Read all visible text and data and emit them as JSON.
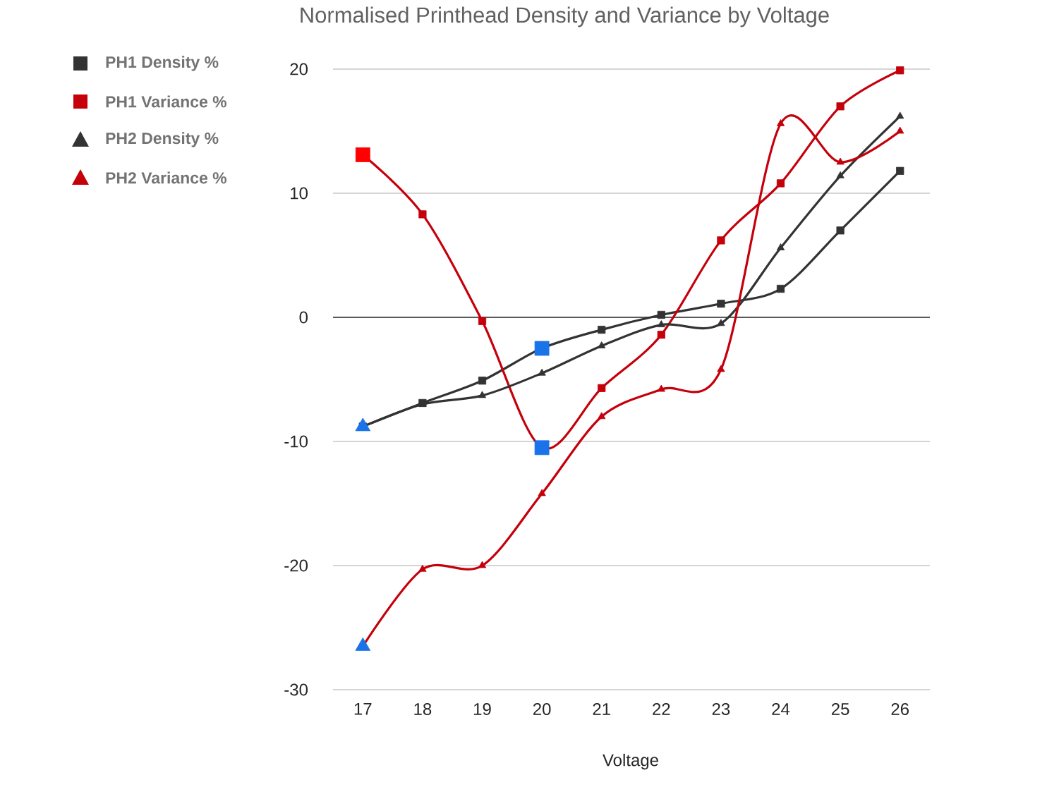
{
  "chart_data": {
    "type": "line",
    "title": "Normalised Printhead Density and Variance by Voltage",
    "xlabel": "Voltage",
    "x": [
      17,
      18,
      19,
      20,
      21,
      22,
      23,
      24,
      25,
      26
    ],
    "xlim": [
      16.5,
      26.5
    ],
    "xticks": [
      17,
      18,
      19,
      20,
      21,
      22,
      23,
      24,
      25,
      26
    ],
    "ylim": [
      -30,
      20
    ],
    "yticks": [
      -30,
      -20,
      -10,
      0,
      10,
      20
    ],
    "grid": "y",
    "legend": "top left",
    "line_style": "solid",
    "series": [
      {
        "name": "PH1 Density %",
        "color": "#333333",
        "marker": "square",
        "values": [
          -8.8,
          -6.9,
          -5.1,
          -2.5,
          -1.0,
          0.2,
          1.1,
          2.3,
          7.0,
          11.8
        ],
        "colors": [
          "#333333",
          "#333333",
          "#333333",
          "#1a73e8",
          "#333333",
          "#333333",
          "#333333",
          "#333333",
          "#333333",
          "#333333"
        ]
      },
      {
        "name": "PH1 Variance %",
        "color": "#c5000b",
        "marker": "square",
        "values": [
          13.1,
          8.3,
          -0.3,
          -10.5,
          -5.7,
          -1.4,
          6.2,
          10.8,
          17.0,
          19.9
        ],
        "colors": [
          "#ff0000",
          "#c5000b",
          "#c5000b",
          "#1a73e8",
          "#c5000b",
          "#c5000b",
          "#c5000b",
          "#c5000b",
          "#c5000b",
          "#c5000b"
        ]
      },
      {
        "name": "PH2 Density %",
        "color": "#333333",
        "marker": "triangle",
        "values": [
          -8.8,
          -7.0,
          -6.3,
          -4.5,
          -2.3,
          -0.6,
          -0.5,
          5.6,
          11.4,
          16.2
        ],
        "colors": [
          "#1a73e8",
          "#333333",
          "#333333",
          "#333333",
          "#333333",
          "#333333",
          "#333333",
          "#333333",
          "#333333",
          "#333333"
        ]
      },
      {
        "name": "PH2 Variance %",
        "color": "#c5000b",
        "marker": "triangle",
        "values": [
          -26.5,
          -20.3,
          -20.0,
          -14.2,
          -8.0,
          -5.8,
          -4.2,
          15.6,
          12.5,
          15.0
        ],
        "colors": [
          "#1a73e8",
          "#c5000b",
          "#c5000b",
          "#c5000b",
          "#c5000b",
          "#c5000b",
          "#c5000b",
          "#c5000b",
          "#c5000b",
          "#c5000b"
        ]
      }
    ]
  }
}
